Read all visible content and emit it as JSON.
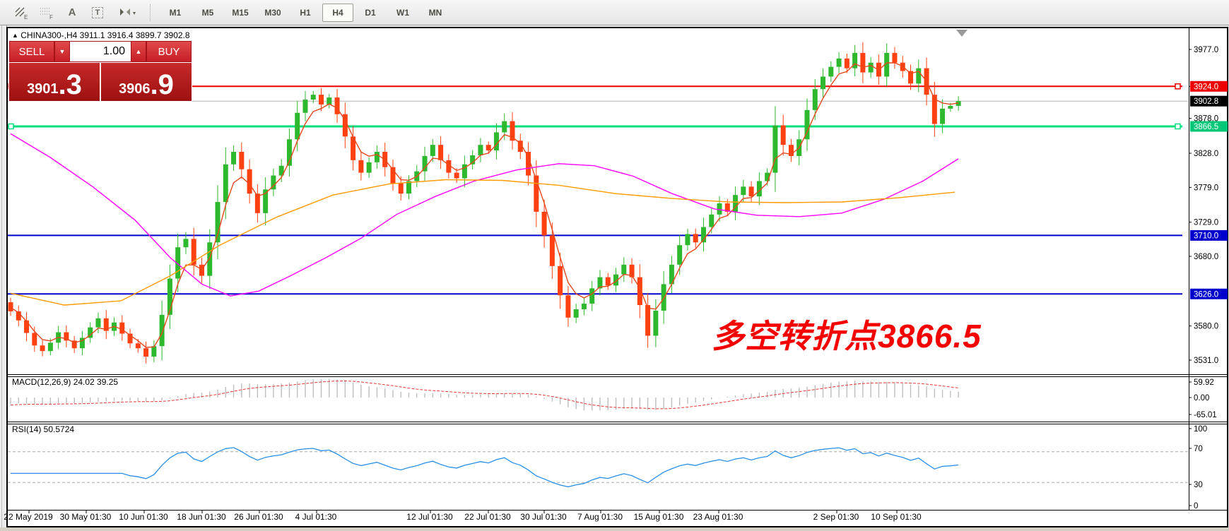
{
  "toolbar": {
    "icons": [
      {
        "name": "elliott-waves-icon",
        "letter": "E"
      },
      {
        "name": "fibonacci-grid-icon",
        "letter": "F"
      },
      {
        "name": "text-label-icon",
        "letter": "A"
      },
      {
        "name": "text-box-icon",
        "letter": "T"
      },
      {
        "name": "cycle-lines-icon",
        "letter": ""
      }
    ],
    "timeframes": [
      "M1",
      "M5",
      "M15",
      "M30",
      "H1",
      "H4",
      "D1",
      "W1",
      "MN"
    ],
    "active_timeframe": "H4"
  },
  "header": {
    "marker": "▲",
    "symbol": "CHINA300-,H4",
    "ohlc": "3911.1 3916.4 3899.7 3902.8"
  },
  "trade_panel": {
    "sell_label": "SELL",
    "buy_label": "BUY",
    "volume": "1.00",
    "down_arrow": "▼",
    "up_arrow": "▲",
    "sell_price_main": "3901",
    "sell_price_frac": ".3",
    "buy_price_main": "3906",
    "buy_price_frac": ".9"
  },
  "annotation": {
    "text": "多空转折点3866.5",
    "color": "#f40000"
  },
  "chart_data": {
    "type": "candlestick",
    "title": "CHINA300-,H4",
    "open_first": 3614,
    "closes": [
      3601,
      3588,
      3570,
      3552,
      3544,
      3556,
      3571,
      3559,
      3548,
      3563,
      3578,
      3591,
      3573,
      3585,
      3569,
      3555,
      3548,
      3536,
      3551,
      3596,
      3648,
      3693,
      3705,
      3668,
      3652,
      3700,
      3758,
      3812,
      3830,
      3805,
      3770,
      3742,
      3776,
      3796,
      3810,
      3848,
      3886,
      3905,
      3912,
      3898,
      3908,
      3884,
      3852,
      3818,
      3800,
      3815,
      3830,
      3808,
      3785,
      3770,
      3788,
      3802,
      3824,
      3840,
      3818,
      3800,
      3792,
      3812,
      3825,
      3840,
      3832,
      3858,
      3874,
      3846,
      3830,
      3796,
      3744,
      3710,
      3666,
      3624,
      3592,
      3604,
      3612,
      3634,
      3650,
      3638,
      3654,
      3668,
      3650,
      3610,
      3566,
      3602,
      3640,
      3668,
      3696,
      3712,
      3700,
      3722,
      3740,
      3756,
      3744,
      3768,
      3780,
      3766,
      3788,
      3800,
      3868,
      3840,
      3824,
      3848,
      3890,
      3920,
      3938,
      3952,
      3964,
      3950,
      3972,
      3944,
      3958,
      3938,
      3972,
      3958,
      3946,
      3928,
      3950,
      3912,
      3870,
      3892,
      3896,
      3902.8
    ],
    "ylim": [
      3531.0,
      3977.0
    ],
    "axis_ticks": [
      3977.0,
      3924.0,
      3878.0,
      3828.0,
      3779.0,
      3729.0,
      3680.0,
      3580.0,
      3531.0
    ],
    "current_price": {
      "value": 3902.8,
      "line_color": "#b4b4b4",
      "box_color": "#000000"
    },
    "levels": [
      {
        "value": 3924.0,
        "color": "#ee0000",
        "width": 2,
        "marker": true
      },
      {
        "value": 3866.5,
        "color": "#00dd7c",
        "width": 3,
        "marker": true
      },
      {
        "value": 3710.0,
        "color": "#0000cc",
        "width": 2,
        "marker": false
      },
      {
        "value": 3626.0,
        "color": "#0000cc",
        "width": 2,
        "marker": false
      }
    ],
    "ma_lines": [
      {
        "name": "ma-fast",
        "color": "#e5481c",
        "type": "ema_from_closes",
        "alpha": 0.42
      },
      {
        "name": "ma-medium",
        "color": "#ff00ff",
        "type": "anchors",
        "points": [
          [
            14,
            3856
          ],
          [
            70,
            3822
          ],
          [
            130,
            3780
          ],
          [
            190,
            3732
          ],
          [
            240,
            3678
          ],
          [
            285,
            3640
          ],
          [
            325,
            3623
          ],
          [
            365,
            3630
          ],
          [
            410,
            3652
          ],
          [
            460,
            3678
          ],
          [
            510,
            3706
          ],
          [
            560,
            3740
          ],
          [
            615,
            3766
          ],
          [
            670,
            3788
          ],
          [
            730,
            3804
          ],
          [
            790,
            3813
          ],
          [
            840,
            3810
          ],
          [
            895,
            3795
          ],
          [
            950,
            3770
          ],
          [
            1010,
            3748
          ],
          [
            1070,
            3739
          ],
          [
            1130,
            3737
          ],
          [
            1190,
            3742
          ],
          [
            1250,
            3762
          ],
          [
            1305,
            3788
          ],
          [
            1355,
            3820
          ]
        ]
      },
      {
        "name": "ma-slow",
        "color": "#ff9a00",
        "type": "anchors",
        "points": [
          [
            14,
            3627
          ],
          [
            90,
            3610
          ],
          [
            170,
            3616
          ],
          [
            240,
            3652
          ],
          [
            310,
            3696
          ],
          [
            390,
            3736
          ],
          [
            470,
            3768
          ],
          [
            550,
            3784
          ],
          [
            630,
            3790
          ],
          [
            710,
            3789
          ],
          [
            790,
            3782
          ],
          [
            870,
            3770
          ],
          [
            950,
            3763
          ],
          [
            1030,
            3758
          ],
          [
            1110,
            3757
          ],
          [
            1190,
            3758
          ],
          [
            1270,
            3764
          ],
          [
            1350,
            3772
          ]
        ]
      }
    ],
    "macd": {
      "label": "MACD(12,26,9) 24.02 39.25",
      "fast": 12,
      "slow": 26,
      "signal": 9,
      "scale_ticks": [
        "59.92",
        "0.00",
        "-65.01"
      ],
      "hist_color": "#bebebe",
      "signal_color": "#e53935"
    },
    "rsi": {
      "label": "RSI(14) 50.5724",
      "period": 14,
      "scale_ticks": [
        "100",
        "70",
        "30",
        "0"
      ],
      "guides": [
        70,
        30
      ],
      "line_color": "#2a8fe8"
    },
    "x_labels": [
      [
        40,
        "22 May 2019"
      ],
      [
        121,
        "30 May 01:30"
      ],
      [
        203,
        "10 Jun 01:30"
      ],
      [
        285,
        "18 Jun 01:30"
      ],
      [
        366,
        "26 Jun 01:30"
      ],
      [
        447,
        "4 Jul 01:30"
      ],
      [
        608,
        "12 Jul 01:30"
      ],
      [
        690,
        "22 Jul 01:30"
      ],
      [
        769,
        "30 Jul 01:30"
      ],
      [
        849,
        "7 Aug 01:30"
      ],
      [
        932,
        "15 Aug 01:30"
      ],
      [
        1016,
        "23 Aug 01:30"
      ],
      [
        1183,
        "2 Sep 01:30"
      ],
      [
        1268,
        "10 Sep 01:30"
      ]
    ],
    "colors": {
      "up": "#2eb82e",
      "down": "#ff4010",
      "shift_marker": "#9a9a9a"
    }
  }
}
